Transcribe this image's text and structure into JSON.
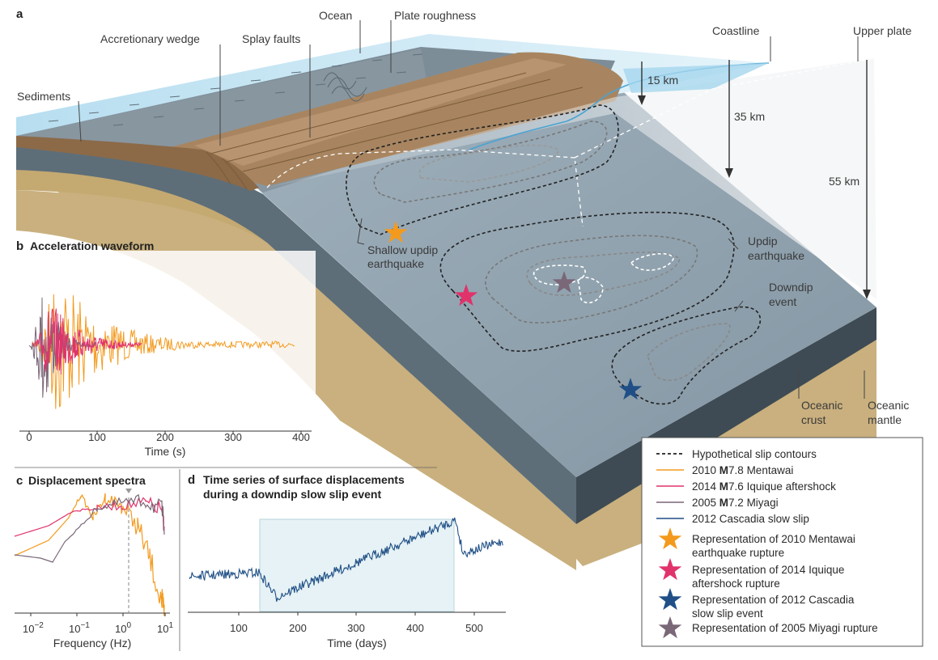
{
  "colors": {
    "ocean": "#bfe3f2",
    "oceanDeep": "#7fc6e6",
    "slab": "#8a9ba8",
    "slabFront": "#44525c",
    "crust": "#c9b07e",
    "mentawai": "#f39a1e",
    "iquique": "#e0336b",
    "miyagi": "#7a6777",
    "cascadia": "#1f4f86"
  },
  "panel_a": {
    "label": "a",
    "labels": {
      "ocean": "Ocean",
      "plate_roughness": "Plate roughness",
      "accretionary_wedge": "Accretionary wedge",
      "splay_faults": "Splay faults",
      "sediments": "Sediments",
      "coastline": "Coastline",
      "upper_plate": "Upper plate",
      "depth_15": "15 km",
      "depth_35": "35 km",
      "depth_55": "55 km",
      "shallow_updip_1": "Shallow updip",
      "shallow_updip_2": "earthquake",
      "updip_1": "Updip",
      "updip_2": "earthquake",
      "downdip_1": "Downdip",
      "downdip_2": "event",
      "oceanic_crust_1": "Oceanic",
      "oceanic_crust_2": "crust",
      "oceanic_mantle_1": "Oceanic",
      "oceanic_mantle_2": "mantle"
    }
  },
  "panel_b": {
    "label": "b",
    "title": "Acceleration waveform",
    "xlabel": "Time (s)",
    "xticks": [
      "0",
      "100",
      "200",
      "300",
      "400"
    ]
  },
  "panel_c": {
    "label": "c",
    "title": "Displacement spectra",
    "xlabel": "Frequency (Hz)",
    "xticks": [
      {
        "base": "10",
        "exp": "−2"
      },
      {
        "base": "10",
        "exp": "−1"
      },
      {
        "base": "10",
        "exp": "0"
      },
      {
        "base": "10",
        "exp": "1"
      }
    ]
  },
  "panel_d": {
    "label": "d",
    "title_1": "Time series of surface displacements",
    "title_2": "during a downdip slow slip event",
    "xlabel": "Time (days)",
    "xticks": [
      "100",
      "200",
      "300",
      "400",
      "500"
    ]
  },
  "legend": {
    "slip_contours": "Hypothetical slip contours",
    "items": [
      {
        "year": "2010 ",
        "mag": "M",
        "rest": "7.8 Mentawai"
      },
      {
        "year": "2014 ",
        "mag": "M",
        "rest": "7.6 Iquique aftershock"
      },
      {
        "year": "2005 ",
        "mag": "M",
        "rest": "7.2 Miyagi"
      },
      {
        "year": "",
        "mag": "",
        "rest": "2012 Cascadia slow slip"
      }
    ],
    "stars": [
      {
        "l1": "Representation of 2010 Mentawai",
        "l2": "earthquake rupture"
      },
      {
        "l1": "Representation of 2014 Iquique",
        "l2": "aftershock rupture"
      },
      {
        "l1": "Representation of 2012 Cascadia",
        "l2": "slow slip event"
      },
      {
        "l1": "Representation of 2005 Miyagi rupture",
        "l2": ""
      }
    ]
  }
}
